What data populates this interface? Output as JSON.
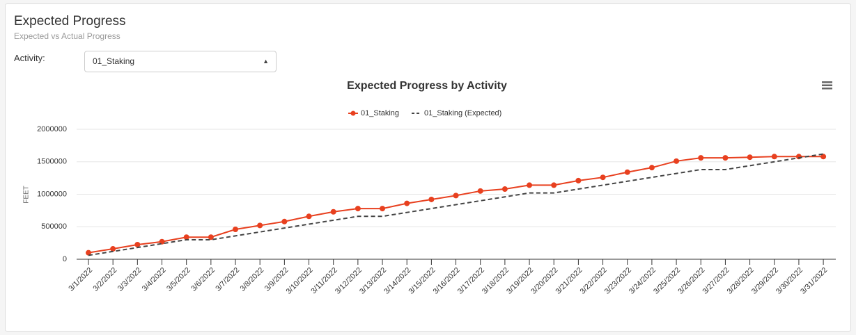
{
  "header": {
    "title": "Expected Progress",
    "subtitle": "Expected vs Actual Progress"
  },
  "filter": {
    "label": "Activity:",
    "value": "01_Staking"
  },
  "chart_data": {
    "type": "line",
    "title": "Expected Progress by Activity",
    "y_label": "FEET",
    "categories": [
      "3/1/2022",
      "3/2/2022",
      "3/3/2022",
      "3/4/2022",
      "3/5/2022",
      "3/6/2022",
      "3/7/2022",
      "3/8/2022",
      "3/9/2022",
      "3/10/2022",
      "3/11/2022",
      "3/12/2022",
      "3/13/2022",
      "3/14/2022",
      "3/15/2022",
      "3/16/2022",
      "3/17/2022",
      "3/18/2022",
      "3/19/2022",
      "3/20/2022",
      "3/21/2022",
      "3/22/2022",
      "3/23/2022",
      "3/24/2022",
      "3/25/2022",
      "3/26/2022",
      "3/27/2022",
      "3/28/2022",
      "3/29/2022",
      "3/30/2022",
      "3/31/2022"
    ],
    "series": [
      {
        "name": "01_Staking",
        "color": "#e8401f",
        "line_style": "solid",
        "markers": true,
        "values": [
          100000,
          160000,
          225000,
          270000,
          340000,
          340000,
          460000,
          520000,
          580000,
          660000,
          730000,
          780000,
          780000,
          860000,
          920000,
          980000,
          1050000,
          1080000,
          1140000,
          1140000,
          1210000,
          1260000,
          1340000,
          1410000,
          1510000,
          1560000,
          1560000,
          1570000,
          1580000,
          1580000,
          1580000
        ]
      },
      {
        "name": "01_Staking (Expected)",
        "color": "#444444",
        "line_style": "dashed",
        "markers": false,
        "values": [
          60000,
          120000,
          180000,
          240000,
          300000,
          300000,
          360000,
          420000,
          480000,
          540000,
          600000,
          660000,
          660000,
          720000,
          780000,
          840000,
          900000,
          960000,
          1020000,
          1020000,
          1080000,
          1140000,
          1200000,
          1260000,
          1320000,
          1380000,
          1380000,
          1440000,
          1500000,
          1560000,
          1620000
        ]
      }
    ],
    "ylim": [
      0,
      2000000
    ],
    "yticks": [
      0,
      500000,
      1000000,
      1500000,
      2000000
    ],
    "grid": true
  }
}
